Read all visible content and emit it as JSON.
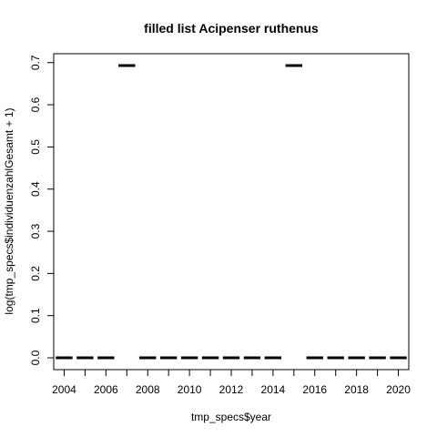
{
  "chart_data": {
    "type": "bar",
    "title": "filled list Acipenser ruthenus",
    "xlabel": "tmp_specs$year",
    "ylabel": "log(tmp_specs$individuenzahlGesamt + 1)",
    "categories": [
      "2004",
      "2005",
      "2006",
      "2007",
      "2008",
      "2009",
      "2010",
      "2011",
      "2012",
      "2013",
      "2014",
      "2015",
      "2016",
      "2017",
      "2018",
      "2019",
      "2020"
    ],
    "values": [
      0,
      0,
      0,
      0.693,
      0,
      0,
      0,
      0,
      0,
      0,
      0,
      0.693,
      0,
      0,
      0,
      0,
      0
    ],
    "x_tick_labels": [
      "2004",
      "2006",
      "2008",
      "2010",
      "2012",
      "2014",
      "2016",
      "2018",
      "2020"
    ],
    "y_ticks": [
      0.0,
      0.1,
      0.2,
      0.3,
      0.4,
      0.5,
      0.6,
      0.7
    ],
    "y_tick_labels": [
      "0.0",
      "0.1",
      "0.2",
      "0.3",
      "0.4",
      "0.5",
      "0.6",
      "0.7"
    ],
    "ylim": [
      -0.028,
      0.721
    ],
    "grid": false,
    "legend": "none"
  }
}
